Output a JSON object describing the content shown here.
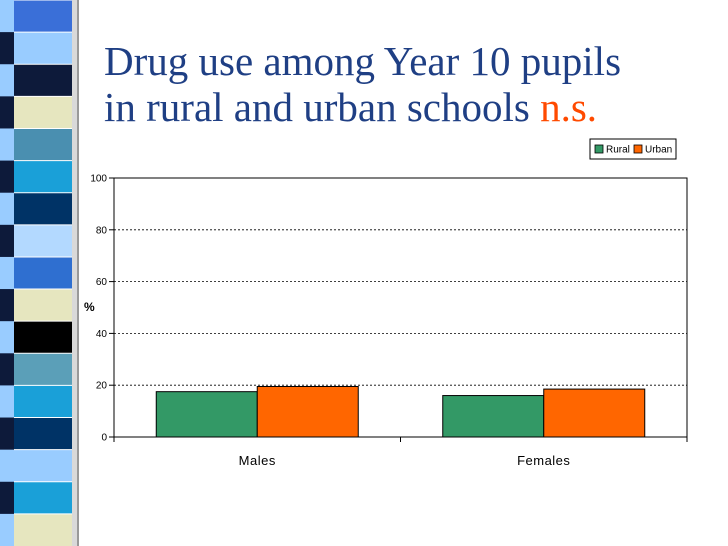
{
  "slide": {
    "title_line1": "Drug use among Year 10 pupils",
    "title_line2": "in rural and urban schools",
    "title_note": "n.s."
  },
  "colors": {
    "rural": "#339966",
    "urban": "#ff6600",
    "title": "#1f3f84",
    "note": "#ff4a00"
  },
  "decor": {
    "stripe_colors": [
      "#3a6fd8",
      "#99ccff",
      "#0d1a3a",
      "#e6e6bf",
      "#4a8fb0",
      "#1aa0d8",
      "#003366",
      "#b3d9ff",
      "#2f6fd0",
      "#e6e6bf",
      "#000000",
      "#5b9fb8",
      "#1aa0d8",
      "#003366",
      "#99ccff",
      "#1aa0d8",
      "#e6e6bf"
    ]
  },
  "chart_data": {
    "type": "bar",
    "categories": [
      "Males",
      "Females"
    ],
    "series": [
      {
        "name": "Rural",
        "values": [
          17.5,
          16
        ]
      },
      {
        "name": "Urban",
        "values": [
          19.5,
          18.5
        ]
      }
    ],
    "title": "",
    "xlabel": "",
    "ylabel": "%",
    "ylim": [
      0,
      100
    ],
    "yticks": [
      0,
      20,
      40,
      60,
      80,
      100
    ],
    "grid": true,
    "legend": "top-right"
  }
}
